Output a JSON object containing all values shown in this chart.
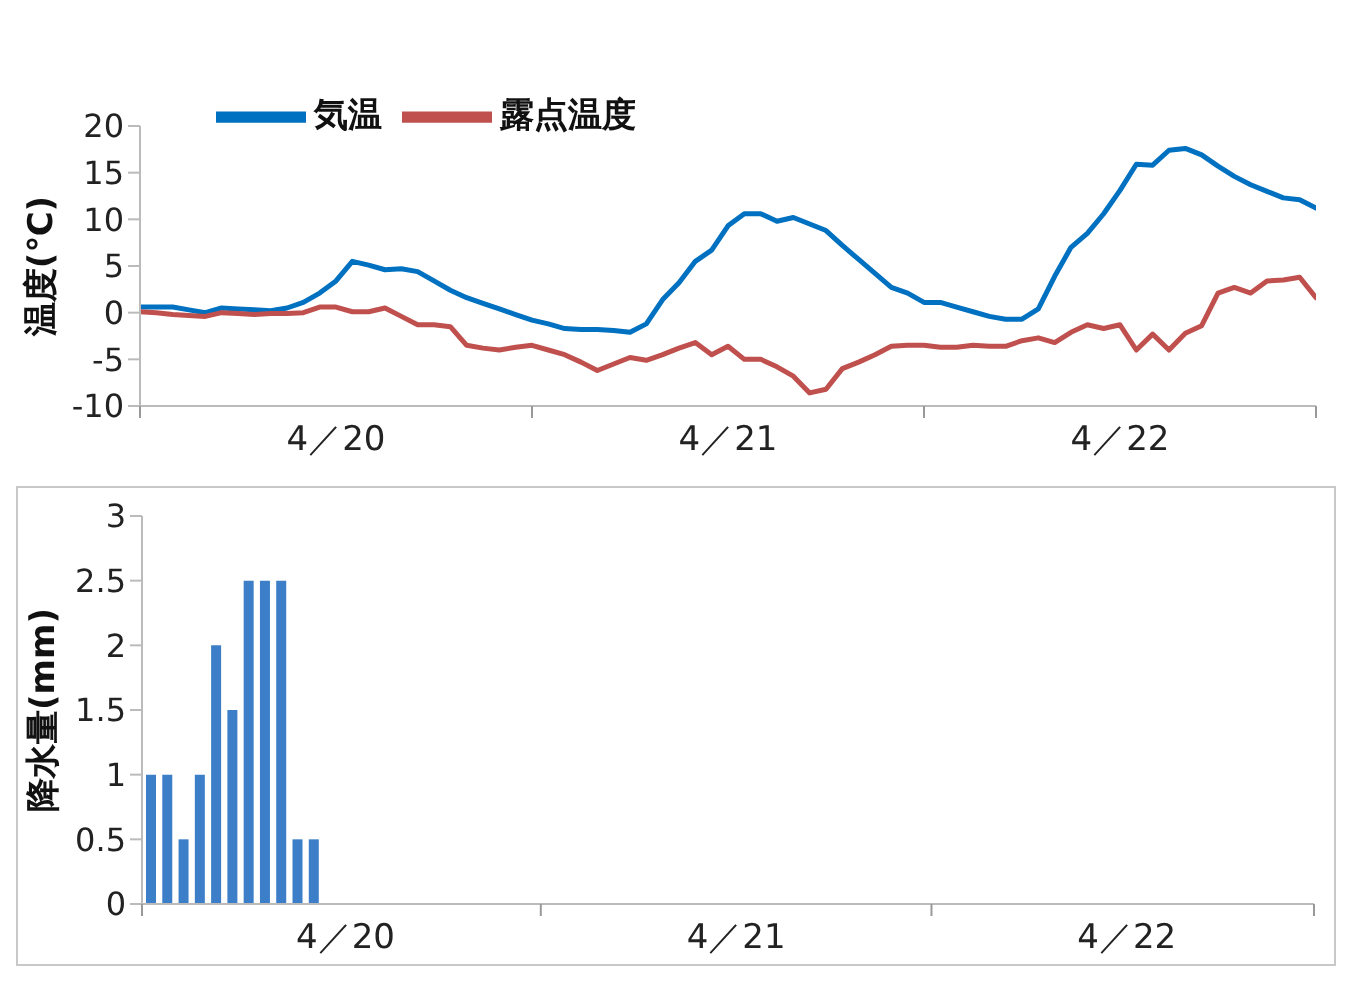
{
  "chart_data": [
    {
      "type": "line",
      "ylabel": "温度(℃)",
      "categories": [
        null,
        null,
        null,
        null,
        null,
        null,
        null,
        null,
        null,
        null,
        null,
        null,
        "4／20",
        null,
        null,
        null,
        null,
        null,
        null,
        null,
        null,
        null,
        null,
        null,
        null,
        null,
        null,
        null,
        null,
        null,
        null,
        null,
        null,
        null,
        null,
        null,
        "4／21",
        null,
        null,
        null,
        null,
        null,
        null,
        null,
        null,
        null,
        null,
        null,
        null,
        null,
        null,
        null,
        null,
        null,
        null,
        null,
        null,
        null,
        null,
        null,
        "4／22",
        null,
        null,
        null,
        null,
        null,
        null,
        null,
        null,
        null,
        null,
        null,
        null
      ],
      "series": [
        {
          "name": "気温",
          "color": "#0070c0",
          "values": [
            0.6,
            0.6,
            0.6,
            0.3,
            0,
            0.5,
            0.4,
            0.3,
            0.2,
            0.5,
            1.1,
            2.1,
            3.4,
            5.5,
            5.1,
            4.6,
            4.7,
            4.4,
            3.4,
            2.4,
            1.6,
            1.0,
            0.4,
            -0.2,
            -0.8,
            -1.2,
            -1.7,
            -1.8,
            -1.8,
            -1.9,
            -2.1,
            -1.2,
            1.4,
            3.2,
            5.5,
            6.7,
            9.3,
            10.6,
            10.6,
            9.8,
            10.2,
            9.5,
            8.8,
            7.2,
            5.7,
            4.2,
            2.7,
            2.1,
            1.1,
            1.1,
            0.6,
            0.1,
            -0.4,
            -0.7,
            -0.7,
            0.4,
            3.9,
            7.0,
            8.5,
            10.6,
            13.1,
            15.9,
            15.8,
            17.4,
            17.6,
            16.9,
            15.7,
            14.6,
            13.7,
            13.0,
            12.3,
            12.1,
            11.2
          ]
        },
        {
          "name": "露点温度",
          "color": "#c0504d",
          "values": [
            0.1,
            0,
            -0.2,
            -0.3,
            -0.4,
            0,
            -0.1,
            -0.2,
            -0.1,
            -0.1,
            0,
            0.6,
            0.6,
            0.1,
            0.1,
            0.5,
            -0.4,
            -1.3,
            -1.3,
            -1.5,
            -3.5,
            -3.8,
            -4.0,
            -3.7,
            -3.5,
            -4.0,
            -4.5,
            -5.3,
            -6.2,
            -5.5,
            -4.8,
            -5.1,
            -4.5,
            -3.8,
            -3.2,
            -4.5,
            -3.6,
            -5.0,
            -5.0,
            -5.8,
            -6.8,
            -8.6,
            -8.2,
            -6.0,
            -5.3,
            -4.5,
            -3.6,
            -3.5,
            -3.5,
            -3.7,
            -3.7,
            -3.5,
            -3.6,
            -3.6,
            -3.0,
            -2.7,
            -3.2,
            -2.1,
            -1.3,
            -1.7,
            -1.3,
            -4.0,
            -2.3,
            -4.0,
            -2.2,
            -1.4,
            2.1,
            2.7,
            2.1,
            3.4,
            3.5,
            3.8,
            1.6
          ]
        }
      ],
      "ylim": [
        -10,
        20
      ],
      "yticks": [
        -10,
        -5,
        0,
        5,
        10,
        15,
        20
      ],
      "legend": "top left",
      "marker": "none",
      "line_style": "solid"
    },
    {
      "type": "bar",
      "ylabel": "降水量(mm)",
      "categories": [
        null,
        null,
        null,
        null,
        null,
        null,
        null,
        null,
        null,
        null,
        null,
        null,
        "4／20",
        null,
        null,
        null,
        null,
        null,
        null,
        null,
        null,
        null,
        null,
        null,
        null,
        null,
        null,
        null,
        null,
        null,
        null,
        null,
        null,
        null,
        null,
        null,
        "4／21",
        null,
        null,
        null,
        null,
        null,
        null,
        null,
        null,
        null,
        null,
        null,
        null,
        null,
        null,
        null,
        null,
        null,
        null,
        null,
        null,
        null,
        null,
        null,
        "4／22",
        null,
        null,
        null,
        null,
        null,
        null,
        null,
        null,
        null,
        null,
        null
      ],
      "values": [
        1,
        1,
        0.5,
        1,
        2,
        1.5,
        2.5,
        2.5,
        2.5,
        0.5,
        0.5,
        null,
        null,
        null,
        null,
        null,
        null,
        null,
        null,
        null,
        null,
        null,
        null,
        null,
        null,
        null,
        null,
        null,
        null,
        null,
        null,
        null,
        null,
        null,
        null,
        null,
        null,
        null,
        null,
        null,
        null,
        null,
        null,
        null,
        null,
        null,
        null,
        null,
        null,
        null,
        null,
        null,
        null,
        null,
        null,
        null,
        null,
        null,
        null,
        null,
        null,
        null,
        null,
        null,
        null,
        null,
        null,
        null,
        null,
        null,
        null,
        null
      ],
      "color": "#3c7ec8",
      "ylim": [
        0,
        3
      ],
      "yticks": [
        0,
        0.5,
        1,
        1.5,
        2,
        2.5,
        3
      ]
    }
  ]
}
